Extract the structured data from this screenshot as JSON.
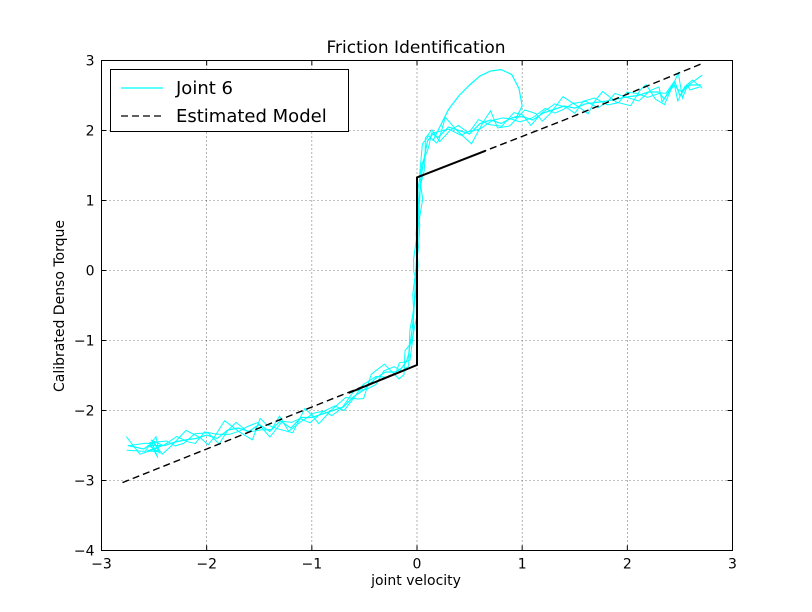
{
  "chart_data": {
    "type": "line",
    "title": "Friction Identification",
    "xlabel": "joint velocity",
    "ylabel": "Calibrated Denso Torque",
    "xlim": [
      -3,
      3
    ],
    "ylim": [
      -4,
      3
    ],
    "xticks": [
      -3,
      -2,
      -1,
      0,
      1,
      2,
      3
    ],
    "yticks": [
      -4,
      -3,
      -2,
      -1,
      0,
      1,
      2,
      3
    ],
    "xtick_labels": [
      "−3",
      "−2",
      "−1",
      "0",
      "1",
      "2",
      "3"
    ],
    "ytick_labels": [
      "−4",
      "−3",
      "−2",
      "−1",
      "0",
      "1",
      "2",
      "3"
    ],
    "grid": true,
    "legend_position": "top-left",
    "colors": {
      "joint": "#00ffff",
      "model": "#000000"
    },
    "series": [
      {
        "name": "Joint 6",
        "style": "solid",
        "x": [
          -2.75,
          -2.6,
          -2.5,
          -2.45,
          -2.55,
          -2.4,
          -2.3,
          -2.2,
          -2.1,
          -2.0,
          -1.9,
          -1.8,
          -1.7,
          -1.6,
          -1.5,
          -1.4,
          -1.3,
          -1.2,
          -1.1,
          -1.0,
          -0.9,
          -0.8,
          -0.7,
          -0.6,
          -0.5,
          -0.4,
          -0.3,
          -0.2,
          -0.15,
          -0.1,
          -0.08,
          -0.05,
          -0.03,
          -0.02,
          -0.01,
          0.0,
          0.01,
          0.02,
          0.03,
          0.05,
          0.08,
          0.1,
          0.15,
          0.2,
          0.3,
          0.4,
          0.5,
          0.6,
          0.7,
          0.8,
          0.9,
          1.0,
          1.1,
          1.2,
          1.3,
          1.4,
          1.5,
          1.6,
          1.7,
          1.8,
          1.9,
          2.0,
          2.1,
          2.2,
          2.3,
          2.35,
          2.45,
          2.5,
          2.55,
          2.6,
          2.7
        ],
        "y": [
          -2.5,
          -2.55,
          -2.45,
          -2.6,
          -2.5,
          -2.5,
          -2.45,
          -2.42,
          -2.4,
          -2.35,
          -2.4,
          -2.28,
          -2.25,
          -2.3,
          -2.2,
          -2.3,
          -2.15,
          -2.25,
          -2.1,
          -2.1,
          -2.05,
          -2.0,
          -1.95,
          -1.8,
          -1.7,
          -1.55,
          -1.45,
          -1.45,
          -1.4,
          -1.3,
          -1.2,
          -0.9,
          -0.6,
          -0.3,
          0.0,
          0.3,
          0.6,
          0.9,
          1.2,
          1.45,
          1.7,
          1.85,
          1.95,
          1.9,
          2.05,
          2.0,
          1.95,
          2.1,
          2.15,
          2.1,
          2.18,
          2.2,
          2.15,
          2.25,
          2.3,
          2.35,
          2.32,
          2.38,
          2.4,
          2.42,
          2.45,
          2.48,
          2.5,
          2.55,
          2.55,
          2.45,
          2.7,
          2.5,
          2.6,
          2.65,
          2.65
        ]
      },
      {
        "name": "Estimated Model",
        "style": "dashed",
        "x": [
          -2.8,
          -1.4,
          0.0,
          0.0,
          1.4,
          2.7
        ],
        "y": [
          -3.03,
          -2.19,
          -1.35,
          1.33,
          2.15,
          2.95
        ]
      }
    ],
    "overshoot_loop": {
      "x": [
        0.15,
        0.2,
        0.3,
        0.4,
        0.5,
        0.6,
        0.7,
        0.8,
        0.9,
        0.97,
        1.0,
        0.95,
        0.9
      ],
      "y": [
        1.85,
        2.0,
        2.3,
        2.5,
        2.65,
        2.78,
        2.85,
        2.87,
        2.8,
        2.6,
        2.35,
        2.2,
        2.18
      ]
    }
  },
  "legend": {
    "entries": [
      "Joint 6",
      "Estimated Model"
    ]
  }
}
